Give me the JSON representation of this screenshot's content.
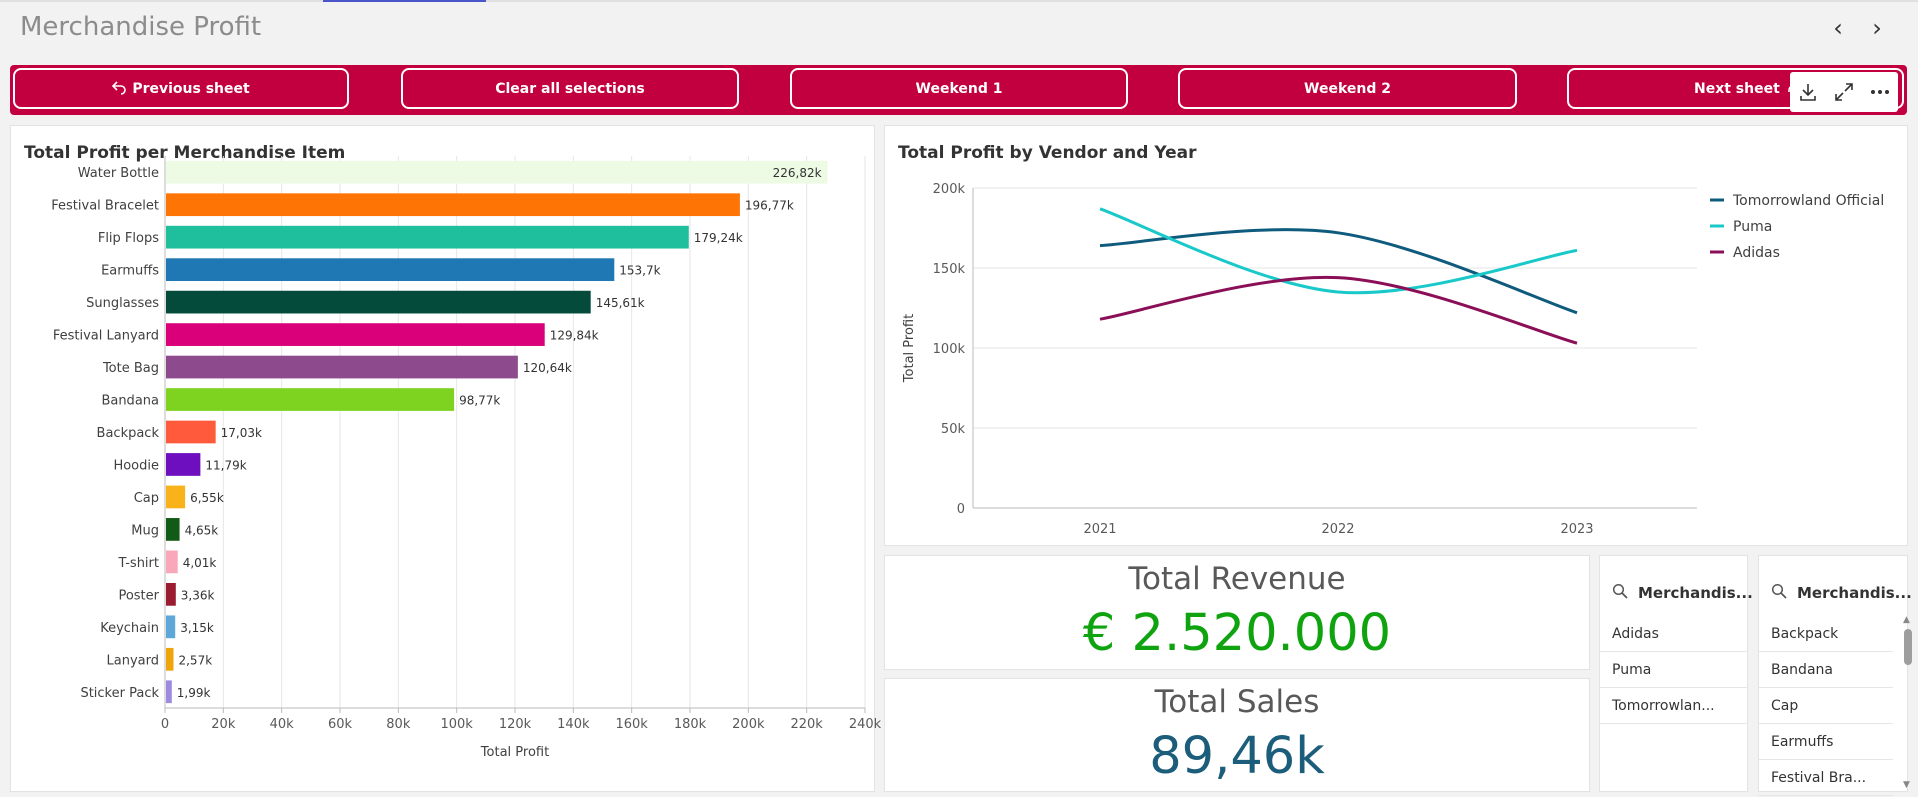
{
  "sheet": {
    "title": "Merchandise Profit"
  },
  "nav_buttons": {
    "previous": "Previous sheet",
    "clear": "Clear all selections",
    "weekend1": "Weekend 1",
    "weekend2": "Weekend 2",
    "next": "Next sheet"
  },
  "toolbar": {
    "icons": [
      "download-icon",
      "expand-icon",
      "more-icon"
    ]
  },
  "bar_chart_title": "Total Profit per Merchandise Item",
  "line_chart_title": "Total Profit by Vendor and Year",
  "kpis": {
    "revenue": {
      "label": "Total Revenue",
      "value": "€ 2.520.000",
      "color": "#0fa40f"
    },
    "sales": {
      "label": "Total Sales",
      "value": "89,46k",
      "color": "#1b5d7a"
    }
  },
  "filters": {
    "vendor": {
      "label": "Merchandis...",
      "items": [
        "Adidas",
        "Puma",
        "Tomorrowlan..."
      ]
    },
    "item": {
      "label": "Merchandis...",
      "items": [
        "Backpack",
        "Bandana",
        "Cap",
        "Earmuffs",
        "Festival Bra..."
      ]
    }
  },
  "chart_data": [
    {
      "type": "bar",
      "orientation": "horizontal",
      "title": "Total Profit per Merchandise Item",
      "xlabel": "Total Profit",
      "ylabel": "",
      "xlim": [
        0,
        240000
      ],
      "x_ticks": [
        "0",
        "20k",
        "40k",
        "60k",
        "80k",
        "100k",
        "120k",
        "140k",
        "160k",
        "180k",
        "200k",
        "220k",
        "240k"
      ],
      "grid": true,
      "categories": [
        "Water Bottle",
        "Festival Bracelet",
        "Flip Flops",
        "Earmuffs",
        "Sunglasses",
        "Festival Lanyard",
        "Tote Bag",
        "Bandana",
        "Backpack",
        "Hoodie",
        "Cap",
        "Mug",
        "T-shirt",
        "Poster",
        "Keychain",
        "Lanyard",
        "Sticker Pack"
      ],
      "values": [
        226820,
        196770,
        179240,
        153700,
        145610,
        129840,
        120640,
        98770,
        17030,
        11790,
        6550,
        4650,
        4010,
        3360,
        3150,
        2570,
        1990
      ],
      "data_labels": [
        "226,82k",
        "196,77k",
        "179,24k",
        "153,7k",
        "145,61k",
        "129,84k",
        "120,64k",
        "98,77k",
        "17,03k",
        "11,79k",
        "6,55k",
        "4,65k",
        "4,01k",
        "3,36k",
        "3,15k",
        "2,57k",
        "1,99k"
      ],
      "colors": [
        "#edfbe5",
        "#ff7505",
        "#1fbf9d",
        "#1f77b4",
        "#044b3c",
        "#d9007a",
        "#8d4a8d",
        "#7ed321",
        "#ff5a3c",
        "#6d0fbf",
        "#fab21b",
        "#115a17",
        "#f8a8b8",
        "#9b1b31",
        "#5ea8d9",
        "#f0a40c",
        "#9e8ae0"
      ]
    },
    {
      "type": "line",
      "title": "Total Profit by Vendor and Year",
      "xlabel": "",
      "ylabel": "Total Profit",
      "categories": [
        "2021",
        "2022",
        "2023"
      ],
      "ylim": [
        0,
        200000
      ],
      "y_ticks": [
        "0",
        "50k",
        "100k",
        "150k",
        "200k"
      ],
      "grid": true,
      "legend_position": "right",
      "series": [
        {
          "name": "Tomorrowland Official",
          "values": [
            164000,
            172000,
            122000
          ],
          "color": "#0f5b7d"
        },
        {
          "name": "Puma",
          "values": [
            187000,
            135000,
            161000
          ],
          "color": "#19c9c9"
        },
        {
          "name": "Adidas",
          "values": [
            118000,
            144000,
            103000
          ],
          "color": "#8b0f57"
        }
      ]
    }
  ]
}
